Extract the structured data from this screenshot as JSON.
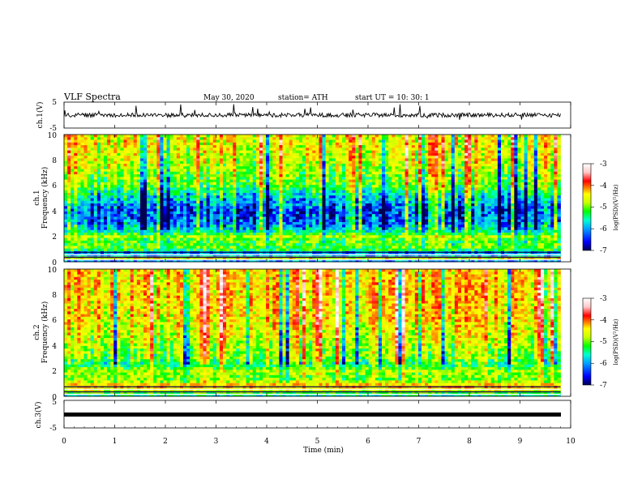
{
  "header": {
    "title": "VLF  Spectra",
    "date": "May 30, 2020",
    "station": "station= ATH",
    "start": "start  UT  =    10: 30: 1"
  },
  "xaxis": {
    "label": "Time  (min)",
    "ticks": [
      "0",
      "1",
      "2",
      "3",
      "4",
      "5",
      "6",
      "7",
      "8",
      "9",
      "10"
    ]
  },
  "ch1_wave": {
    "label": "ch.1(V)",
    "ticks": [
      "5",
      "-5"
    ],
    "color": "#000000"
  },
  "ch1_spec": {
    "label1": "ch.1",
    "label2": "Frequency  (kHz)",
    "ticks": [
      "10",
      "8",
      "6",
      "4",
      "2",
      "0"
    ]
  },
  "ch2_spec": {
    "label1": "ch.2",
    "label2": "Frequency  (kHz)",
    "ticks": [
      "10",
      "8",
      "6",
      "4",
      "2",
      "0"
    ]
  },
  "ch3_wave": {
    "label": "ch.3(V)",
    "ticks": [
      "5",
      "-5"
    ]
  },
  "colorbar": {
    "label": "log(PSD)(V²/Hz)",
    "ticks": [
      "-3",
      "-4",
      "-5",
      "-6",
      "-7"
    ],
    "colors": [
      "#000050",
      "#0000ff",
      "#00a0ff",
      "#00ffd0",
      "#00ff00",
      "#c8ff00",
      "#ffff00",
      "#ff8000",
      "#ff0000",
      "#ffc8c8",
      "#ffffff"
    ]
  },
  "chart_data": {
    "type": "heatmap",
    "title": "VLF  Spectra",
    "xlabel": "Time  (min)",
    "xlim": [
      0,
      10
    ],
    "data_end_min": 9.8,
    "panels": [
      {
        "name": "ch.1(V)",
        "type": "line",
        "ylim": [
          -5,
          5
        ],
        "baseline": 0
      },
      {
        "name": "ch.1",
        "type": "heatmap",
        "ylabel": "Frequency  (kHz)",
        "ylim": [
          0,
          10
        ],
        "zlim": [
          -7,
          -3
        ],
        "profile": [
          {
            "f": 0.0,
            "z": -7.0
          },
          {
            "f": 0.3,
            "z": -4.6
          },
          {
            "f": 0.6,
            "z": -6.6
          },
          {
            "f": 1.0,
            "z": -5.3
          },
          {
            "f": 1.6,
            "z": -5.4
          },
          {
            "f": 2.0,
            "z": -5.0
          },
          {
            "f": 2.3,
            "z": -5.7
          },
          {
            "f": 3.0,
            "z": -6.3
          },
          {
            "f": 4.0,
            "z": -6.5
          },
          {
            "f": 5.0,
            "z": -6.0
          },
          {
            "f": 6.0,
            "z": -5.3
          },
          {
            "f": 8.0,
            "z": -4.9
          },
          {
            "f": 10.0,
            "z": -4.7
          }
        ]
      },
      {
        "name": "ch.2",
        "type": "heatmap",
        "ylabel": "Frequency  (kHz)",
        "ylim": [
          0,
          10
        ],
        "zlim": [
          -7,
          -3
        ],
        "profile": [
          {
            "f": 0.0,
            "z": -6.0
          },
          {
            "f": 0.5,
            "z": -4.8
          },
          {
            "f": 0.8,
            "z": -4.3
          },
          {
            "f": 1.3,
            "z": -5.2
          },
          {
            "f": 2.0,
            "z": -5.0
          },
          {
            "f": 2.5,
            "z": -5.6
          },
          {
            "f": 3.0,
            "z": -5.2
          },
          {
            "f": 4.0,
            "z": -5.0
          },
          {
            "f": 6.0,
            "z": -4.6
          },
          {
            "f": 8.0,
            "z": -4.5
          },
          {
            "f": 10.0,
            "z": -4.5
          }
        ]
      },
      {
        "name": "ch.3(V)",
        "type": "line",
        "ylim": [
          -5,
          5
        ],
        "baseline": 0
      }
    ]
  }
}
